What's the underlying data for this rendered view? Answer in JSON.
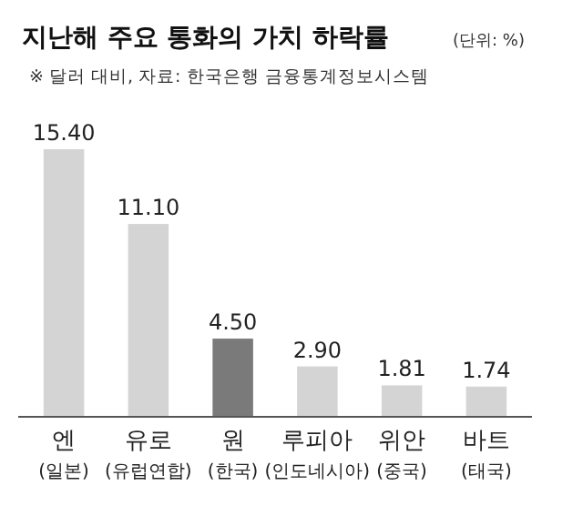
{
  "chart_data": {
    "type": "bar",
    "title": "지난해 주요 통화의 가치 하락률",
    "annotations": [
      "(단위: %)",
      "※ 달러 대비,  자료: 한국은행 금융통계정보시스템"
    ],
    "categories": [
      "엔\n(일본)",
      "유로\n(유럽연합)",
      "원\n(한국)",
      "루피아\n(인도네시아)",
      "위안\n(중국)",
      "바트\n(태국)"
    ],
    "values": [
      15.4,
      11.1,
      4.5,
      2.9,
      1.81,
      1.74
    ],
    "colors": [
      "#d4d4d4",
      "#d4d4d4",
      "#7a7a7a",
      "#d4d4d4",
      "#d4d4d4",
      "#d4d4d4"
    ],
    "value_labels": [
      "15.40",
      "11.10",
      "4.50",
      "2.90",
      "1.81",
      "1.74"
    ]
  }
}
